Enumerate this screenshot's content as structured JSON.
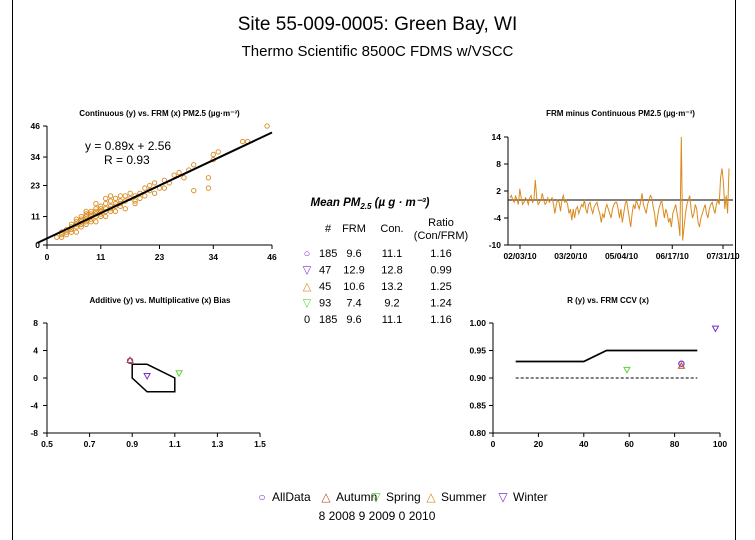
{
  "title": "Site 55-009-0005: Green Bay, WI",
  "subtitle": "Thermo Scientific 8500C FDMS w/VSCC",
  "colors": {
    "orange": "#D98A1E",
    "purple": "#7A2DCE",
    "green": "#5BD43A",
    "brown": "#B0562A"
  },
  "chart_data": [
    {
      "type": "scatter",
      "title": "Continuous (y) vs. FRM (x) PM2.5 (µg·m⁻³)",
      "xlim": [
        0,
        46
      ],
      "ylim": [
        0,
        46
      ],
      "xticks": [
        "0",
        "11",
        "23",
        "34",
        "46"
      ],
      "yticks": [
        "0",
        "11",
        "23",
        "34",
        "46"
      ],
      "equation": "y = 0.89x + 2.56",
      "r_label": "R  = 0.93",
      "fit": {
        "slope": 0.89,
        "intercept": 2.56
      },
      "points": [
        [
          2,
          3
        ],
        [
          3,
          4
        ],
        [
          3,
          5
        ],
        [
          4,
          5
        ],
        [
          4,
          6
        ],
        [
          5,
          6
        ],
        [
          5,
          7
        ],
        [
          5,
          8
        ],
        [
          6,
          7
        ],
        [
          6,
          8
        ],
        [
          6,
          9
        ],
        [
          7,
          8
        ],
        [
          7,
          9
        ],
        [
          7,
          10
        ],
        [
          7,
          11
        ],
        [
          8,
          9
        ],
        [
          8,
          10
        ],
        [
          8,
          11
        ],
        [
          8,
          12
        ],
        [
          9,
          10
        ],
        [
          9,
          11
        ],
        [
          9,
          12
        ],
        [
          9,
          13
        ],
        [
          10,
          11
        ],
        [
          10,
          12
        ],
        [
          10,
          13
        ],
        [
          10,
          14
        ],
        [
          11,
          12
        ],
        [
          11,
          13
        ],
        [
          11,
          14
        ],
        [
          11,
          15
        ],
        [
          12,
          13
        ],
        [
          12,
          14
        ],
        [
          12,
          16
        ],
        [
          13,
          14
        ],
        [
          13,
          15
        ],
        [
          13,
          17
        ],
        [
          14,
          15
        ],
        [
          14,
          16
        ],
        [
          14,
          18
        ],
        [
          15,
          16
        ],
        [
          15,
          17
        ],
        [
          16,
          17
        ],
        [
          16,
          19
        ],
        [
          17,
          18
        ],
        [
          17,
          20
        ],
        [
          18,
          17
        ],
        [
          18,
          19
        ],
        [
          19,
          20
        ],
        [
          20,
          19
        ],
        [
          20,
          22
        ],
        [
          21,
          21
        ],
        [
          22,
          24
        ],
        [
          23,
          22
        ],
        [
          24,
          25
        ],
        [
          25,
          24
        ],
        [
          26,
          27
        ],
        [
          28,
          26
        ],
        [
          29,
          29
        ],
        [
          30,
          31
        ],
        [
          34,
          33
        ],
        [
          34,
          35
        ],
        [
          35,
          36
        ],
        [
          40,
          40
        ],
        [
          41,
          40
        ],
        [
          45,
          46
        ],
        [
          6,
          5
        ],
        [
          8,
          8
        ],
        [
          10,
          9
        ],
        [
          12,
          11
        ],
        [
          14,
          13
        ],
        [
          16,
          14
        ],
        [
          18,
          16
        ],
        [
          22,
          20
        ],
        [
          27,
          28
        ],
        [
          30,
          21
        ],
        [
          33,
          22
        ],
        [
          33,
          26
        ],
        [
          4,
          4
        ],
        [
          3,
          3
        ],
        [
          5,
          5
        ],
        [
          7,
          7
        ],
        [
          9,
          9
        ],
        [
          11,
          11
        ],
        [
          13,
          13
        ],
        [
          15,
          15
        ],
        [
          19,
          18
        ],
        [
          21,
          23
        ],
        [
          24,
          22
        ],
        [
          6,
          10
        ],
        [
          8,
          13
        ],
        [
          10,
          16
        ],
        [
          12,
          18
        ],
        [
          13,
          19
        ],
        [
          15,
          19
        ]
      ]
    },
    {
      "type": "line",
      "title": "FRM minus Continuous PM2.5 (µg·m⁻³)",
      "ylim": [
        -10,
        14
      ],
      "yticks": [
        "-10",
        "-4",
        "2",
        "8",
        "14"
      ],
      "xticks": [
        "02/03/10",
        "03/20/10",
        "05/04/10",
        "06/17/10",
        "07/31/10"
      ],
      "reference_y": 0,
      "values": [
        0.5,
        1,
        0,
        -0.5,
        1,
        0,
        -1,
        2.5,
        0.5,
        -1,
        -0.5,
        0.5,
        0,
        -1,
        0.5,
        1,
        -0.5,
        0,
        4.5,
        0.5,
        -1,
        -0.5,
        0,
        1.5,
        0,
        -1,
        -0.5,
        0.5,
        -0.5,
        0,
        0.5,
        -1,
        -3,
        -1,
        0,
        -0.5,
        -2.5,
        0,
        1,
        -0.5,
        0,
        -1,
        -3,
        -2,
        -4.5,
        -2,
        -4,
        -2,
        -1.5,
        -3,
        -2,
        -1,
        -1.5,
        0,
        -2,
        -3,
        -1,
        -0.5,
        -2,
        -3,
        -1.5,
        -1,
        -0.5,
        -2,
        -3,
        -5,
        -3,
        -4,
        -2,
        -1,
        -2,
        -3,
        -4,
        -2,
        -1,
        -0.5,
        -0.5,
        -2,
        -4,
        -2,
        -5,
        -3,
        -1,
        0,
        -2,
        -4,
        -6,
        -3,
        -1,
        -2,
        0,
        -1,
        -2,
        -0.5,
        1.5,
        -1,
        -2,
        -3,
        -1,
        0,
        1,
        0.5,
        -1.5,
        -3,
        -6,
        -4,
        -2,
        -1,
        0,
        -2,
        -4,
        -2,
        -3,
        -5,
        -4,
        -6,
        -3,
        -2,
        -1,
        -3,
        -5,
        -8,
        14,
        -9,
        -6,
        -3,
        -1,
        0,
        1,
        -2,
        -4,
        -3,
        -1,
        -2,
        -5,
        -6,
        -4,
        -3,
        -2,
        -1,
        -3,
        -4,
        -2,
        -1,
        -0.5,
        -2,
        -3,
        -1,
        0,
        -1,
        5,
        7,
        4,
        -2,
        1,
        -3,
        7
      ]
    },
    {
      "type": "scatter",
      "title": "Additive (y) vs. Multiplicative (x) Bias",
      "xlim": [
        0.5,
        1.5
      ],
      "ylim": [
        -8,
        8
      ],
      "xticks": [
        "0.5",
        "0.7",
        "0.9",
        "1.1",
        "1.3",
        "1.5"
      ],
      "yticks": [
        "-8",
        "-4",
        "0",
        "4",
        "8"
      ],
      "polygon": [
        [
          0.9,
          2
        ],
        [
          0.9,
          0
        ],
        [
          0.97,
          -2
        ],
        [
          1.1,
          -2
        ],
        [
          1.1,
          0
        ],
        [
          0.97,
          2
        ]
      ],
      "points": [
        {
          "series": "AllData",
          "x": 0.89,
          "y": 2.5,
          "symbol": "circle",
          "color": "#7A2DCE"
        },
        {
          "series": "Autumn",
          "x": 0.89,
          "y": 2.6,
          "symbol": "triangle-up",
          "color": "#B0562A"
        },
        {
          "series": "Winter",
          "x": 0.97,
          "y": 0.3,
          "symbol": "triangle-down",
          "color": "#7A2DCE"
        },
        {
          "series": "Spring",
          "x": 1.12,
          "y": 0.7,
          "symbol": "triangle-down",
          "color": "#5BD43A"
        }
      ]
    },
    {
      "type": "line",
      "title": "R (y) vs. FRM CCV (x)",
      "xlim": [
        0,
        100
      ],
      "ylim": [
        0.8,
        1.0
      ],
      "xticks": [
        "0",
        "20",
        "40",
        "60",
        "80",
        "100"
      ],
      "yticks": [
        "0.80",
        "0.85",
        "0.90",
        "0.95",
        "1.00"
      ],
      "solid_line": [
        [
          10,
          0.93
        ],
        [
          40,
          0.93
        ],
        [
          50,
          0.95
        ],
        [
          90,
          0.95
        ]
      ],
      "dashed_line": [
        [
          10,
          0.9
        ],
        [
          90,
          0.9
        ]
      ],
      "points": [
        {
          "series": "Winter",
          "x": 98,
          "y": 0.99,
          "symbol": "triangle-down",
          "color": "#7A2DCE"
        },
        {
          "series": "AllData",
          "x": 83,
          "y": 0.926,
          "symbol": "circle",
          "color": "#7A2DCE"
        },
        {
          "series": "Autumn",
          "x": 83,
          "y": 0.922,
          "symbol": "triangle-up",
          "color": "#B0562A"
        },
        {
          "series": "Spring",
          "x": 59,
          "y": 0.915,
          "symbol": "triangle-down",
          "color": "#5BD43A"
        }
      ]
    },
    {
      "type": "table",
      "title": "Mean PM2.5 (µg·m⁻³)",
      "columns": [
        "#",
        "FRM",
        "Con.",
        "Ratio (Con/FRM)"
      ],
      "ratio_header_line1": "Ratio",
      "ratio_header_line2": "(Con/FRM)",
      "rows": [
        {
          "symbol": "○",
          "color": "#7A2DCE",
          "n": "185",
          "frm": "9.6",
          "con": "11.1",
          "ratio": "1.16"
        },
        {
          "symbol": "▽",
          "color": "#7A2DCE",
          "n": "47",
          "frm": "12.9",
          "con": "12.8",
          "ratio": "0.99"
        },
        {
          "symbol": "△",
          "color": "#D98A1E",
          "n": "45",
          "frm": "10.6",
          "con": "13.2",
          "ratio": "1.25"
        },
        {
          "symbol": "▽",
          "color": "#5BD43A",
          "n": "93",
          "frm": "7.4",
          "con": "9.2",
          "ratio": "1.24"
        },
        {
          "symbol": "0",
          "color": "#000000",
          "n": "185",
          "frm": "9.6",
          "con": "11.1",
          "ratio": "1.16"
        }
      ]
    }
  ],
  "legend": {
    "items": [
      {
        "symbol": "○",
        "color": "#7A2DCE",
        "label": "AllData"
      },
      {
        "symbol": "△",
        "color": "#B0562A",
        "label": "Autumn"
      },
      {
        "symbol": "▽",
        "color": "#5BD43A",
        "label": "Spring"
      },
      {
        "symbol": "△",
        "color": "#D98A1E",
        "label": "Summer"
      },
      {
        "symbol": "▽",
        "color": "#7A2DCE",
        "label": "Winter"
      }
    ],
    "years": "8  2008  9  2009  0  2010"
  }
}
